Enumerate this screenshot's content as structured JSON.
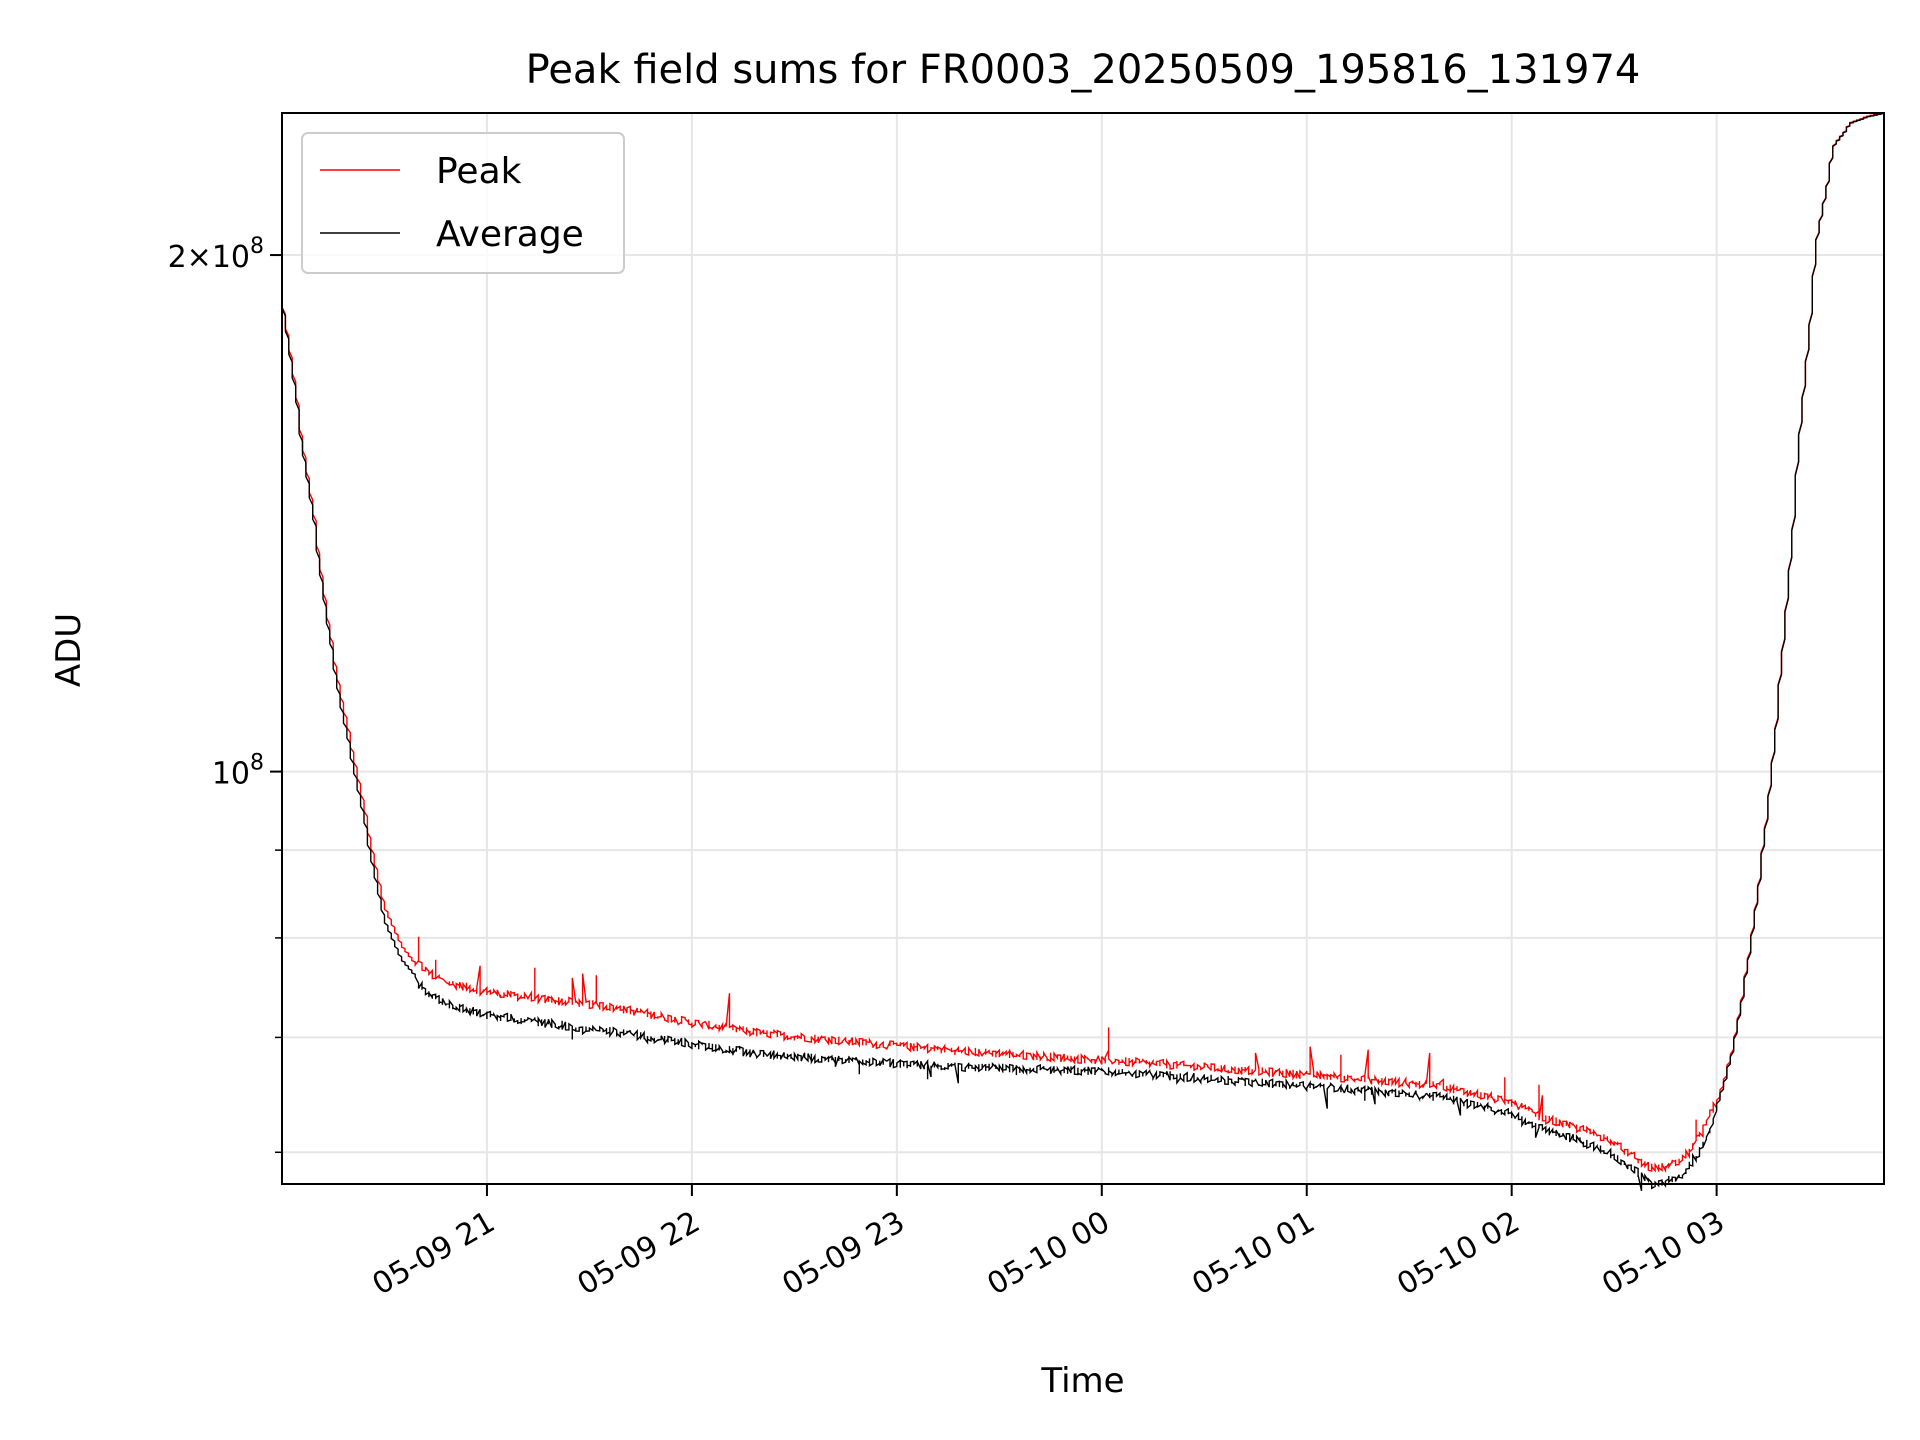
{
  "chart_data": {
    "type": "line",
    "title": "Peak field sums for FR0003_20250509_195816_131974",
    "xlabel": "Time",
    "ylabel": "ADU",
    "y_scale": "log",
    "ylim": [
      57500000,
      242000000
    ],
    "xlim": [
      "2025-05-09 20:00",
      "2025-05-10 03:49"
    ],
    "x_ticks": [
      {
        "value": "2025-05-09 21:00",
        "label": "05-09 21"
      },
      {
        "value": "2025-05-09 22:00",
        "label": "05-09 22"
      },
      {
        "value": "2025-05-09 23:00",
        "label": "05-09 23"
      },
      {
        "value": "2025-05-10 00:00",
        "label": "05-10 00"
      },
      {
        "value": "2025-05-10 01:00",
        "label": "05-10 01"
      },
      {
        "value": "2025-05-10 02:00",
        "label": "05-10 02"
      },
      {
        "value": "2025-05-10 03:00",
        "label": "05-10 03"
      }
    ],
    "y_major_ticks": [
      {
        "value": 100000000,
        "mantissa": "",
        "exp": "8"
      },
      {
        "value": 200000000,
        "mantissa": "2×",
        "exp": "8"
      }
    ],
    "y_minor_ticks": [
      60000000,
      70000000,
      80000000,
      90000000
    ],
    "grid": true,
    "legend_position": "top-left",
    "colors": {
      "peak": "#ff0000",
      "average": "#000000"
    },
    "series": [
      {
        "name": "Peak",
        "color": "#ff0000",
        "x": [
          "2025-05-09 20:00",
          "2025-05-09 20:03",
          "2025-05-09 20:06",
          "2025-05-09 20:10",
          "2025-05-09 20:14",
          "2025-05-09 20:18",
          "2025-05-09 20:22",
          "2025-05-09 20:26",
          "2025-05-09 20:30",
          "2025-05-09 20:35",
          "2025-05-09 20:40",
          "2025-05-09 20:45",
          "2025-05-09 20:50",
          "2025-05-09 21:00",
          "2025-05-09 21:15",
          "2025-05-09 21:30",
          "2025-05-09 21:45",
          "2025-05-09 22:00",
          "2025-05-09 22:20",
          "2025-05-09 22:40",
          "2025-05-09 23:00",
          "2025-05-09 23:20",
          "2025-05-09 23:40",
          "2025-05-10 00:00",
          "2025-05-10 00:20",
          "2025-05-10 00:40",
          "2025-05-10 01:00",
          "2025-05-10 01:20",
          "2025-05-10 01:40",
          "2025-05-10 02:00",
          "2025-05-10 02:10",
          "2025-05-10 02:20",
          "2025-05-10 02:28",
          "2025-05-10 02:35",
          "2025-05-10 02:42",
          "2025-05-10 02:50",
          "2025-05-10 02:56",
          "2025-05-10 03:00",
          "2025-05-10 03:05",
          "2025-05-10 03:10",
          "2025-05-10 03:15",
          "2025-05-10 03:20",
          "2025-05-10 03:25",
          "2025-05-10 03:30",
          "2025-05-10 03:35",
          "2025-05-10 03:40",
          "2025-05-10 03:45",
          "2025-05-10 03:49"
        ],
        "y": [
          192000000,
          175000000,
          158000000,
          140000000,
          122000000,
          110000000,
          101000000,
          92000000,
          84000000,
          79500000,
          77000000,
          75500000,
          74800000,
          74000000,
          73300000,
          72800000,
          72000000,
          71000000,
          70000000,
          69400000,
          68800000,
          68300000,
          67900000,
          67500000,
          67100000,
          66600000,
          66200000,
          65700000,
          65200000,
          63800000,
          62400000,
          61600000,
          60800000,
          59500000,
          58300000,
          58800000,
          61000000,
          63500000,
          68500000,
          78000000,
          93000000,
          118000000,
          158000000,
          205000000,
          232000000,
          239000000,
          241000000,
          242000000
        ]
      },
      {
        "name": "Average",
        "color": "#000000",
        "x": [
          "2025-05-09 20:00",
          "2025-05-09 20:03",
          "2025-05-09 20:06",
          "2025-05-09 20:10",
          "2025-05-09 20:14",
          "2025-05-09 20:18",
          "2025-05-09 20:22",
          "2025-05-09 20:26",
          "2025-05-09 20:30",
          "2025-05-09 20:35",
          "2025-05-09 20:40",
          "2025-05-09 20:45",
          "2025-05-09 20:50",
          "2025-05-09 21:00",
          "2025-05-09 21:15",
          "2025-05-09 21:30",
          "2025-05-09 21:45",
          "2025-05-09 22:00",
          "2025-05-09 22:20",
          "2025-05-09 22:40",
          "2025-05-09 23:00",
          "2025-05-09 23:20",
          "2025-05-09 23:40",
          "2025-05-10 00:00",
          "2025-05-10 00:20",
          "2025-05-10 00:40",
          "2025-05-10 01:00",
          "2025-05-10 01:20",
          "2025-05-10 01:40",
          "2025-05-10 02:00",
          "2025-05-10 02:10",
          "2025-05-10 02:20",
          "2025-05-10 02:28",
          "2025-05-10 02:35",
          "2025-05-10 02:42",
          "2025-05-10 02:50",
          "2025-05-10 02:56",
          "2025-05-10 03:00",
          "2025-05-10 03:05",
          "2025-05-10 03:10",
          "2025-05-10 03:15",
          "2025-05-10 03:20",
          "2025-05-10 03:25",
          "2025-05-10 03:30",
          "2025-05-10 03:35",
          "2025-05-10 03:40",
          "2025-05-10 03:45",
          "2025-05-10 03:49"
        ],
        "y": [
          192000000,
          174000000,
          157000000,
          139000000,
          121000000,
          108500000,
          99500000,
          90500000,
          82500000,
          78000000,
          75800000,
          74300000,
          73500000,
          72600000,
          71900000,
          71300000,
          70600000,
          69800000,
          68900000,
          68400000,
          68000000,
          67700000,
          67500000,
          67300000,
          66900000,
          66400000,
          66000000,
          65500000,
          65000000,
          63600000,
          62200000,
          61300000,
          60500000,
          59200000,
          57800000,
          58400000,
          60600000,
          63200000,
          68300000,
          77800000,
          92800000,
          117800000,
          157800000,
          204800000,
          231800000,
          238800000,
          240800000,
          241800000
        ]
      }
    ]
  }
}
